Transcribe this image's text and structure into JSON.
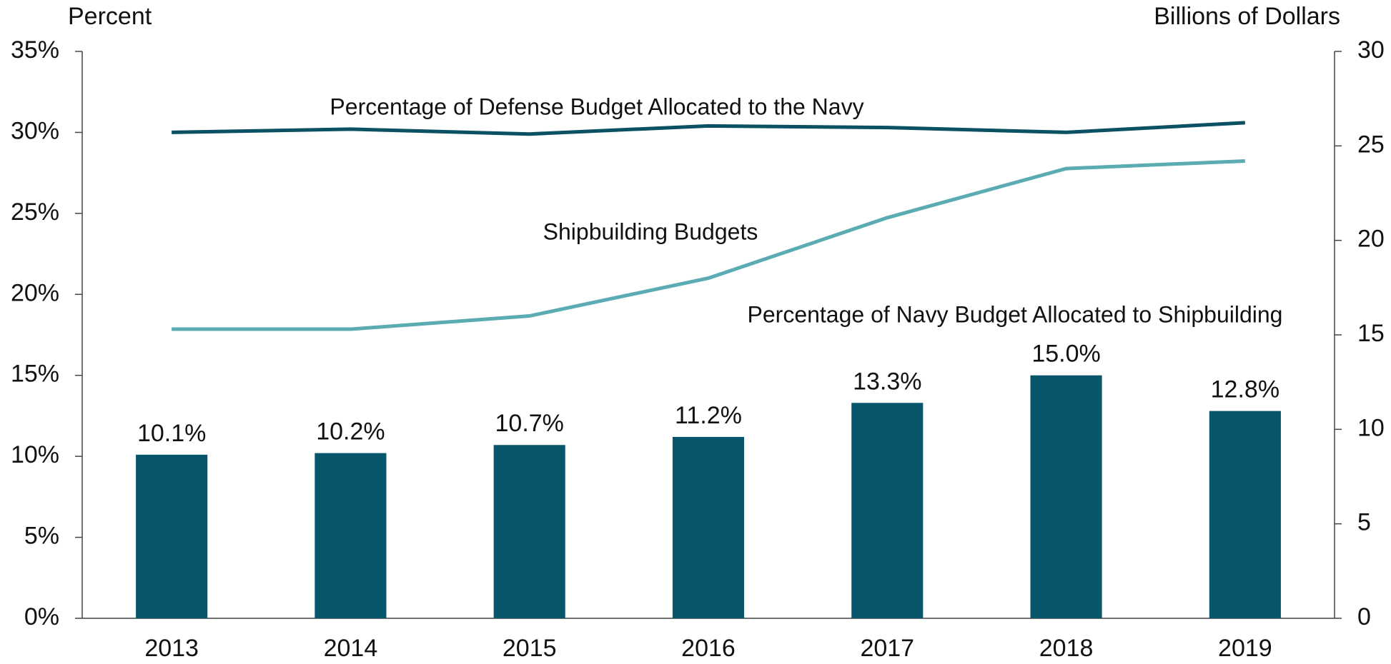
{
  "chart_data": {
    "type": "bar",
    "ylabel": "Percent",
    "y2label": "Billions of Dollars",
    "categories": [
      "2013",
      "2014",
      "2015",
      "2016",
      "2017",
      "2018",
      "2019"
    ],
    "ylim": [
      0,
      35
    ],
    "yticks": [
      {
        "value": 0,
        "label": "0%"
      },
      {
        "value": 5,
        "label": "5%"
      },
      {
        "value": 10,
        "label": "10%"
      },
      {
        "value": 15,
        "label": "15%"
      },
      {
        "value": 20,
        "label": "20%"
      },
      {
        "value": 25,
        "label": "25%"
      },
      {
        "value": 30,
        "label": "30%"
      },
      {
        "value": 35,
        "label": "35%"
      }
    ],
    "y2lim": [
      0,
      30
    ],
    "y2ticks": [
      0,
      5,
      10,
      15,
      20,
      25,
      30
    ],
    "series": [
      {
        "name": "Percentage of Navy Budget Allocated to Shipbuilding",
        "type": "bar",
        "color": "#08566b",
        "values": [
          10.1,
          10.2,
          10.7,
          11.2,
          13.3,
          15.0,
          12.8
        ],
        "value_labels": [
          "10.1%",
          "10.2%",
          "10.7%",
          "11.2%",
          "13.3%",
          "15.0%",
          "12.8%"
        ]
      },
      {
        "name": "Percentage of Defense Budget Allocated to the Navy",
        "type": "line",
        "color": "#0b5063",
        "values": [
          30.0,
          30.2,
          29.9,
          30.4,
          30.3,
          30.0,
          30.6
        ]
      },
      {
        "name": "Shipbuilding Budgets",
        "type": "line",
        "axis": "y2",
        "color": "#5aabb2",
        "values": [
          15.3,
          15.3,
          16.0,
          18.0,
          21.2,
          23.8,
          24.2
        ]
      }
    ]
  }
}
